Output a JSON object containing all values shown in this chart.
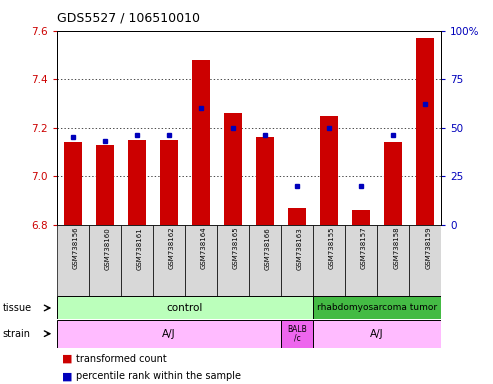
{
  "title": "GDS5527 / 106510010",
  "samples": [
    "GSM738156",
    "GSM738160",
    "GSM738161",
    "GSM738162",
    "GSM738164",
    "GSM738165",
    "GSM738166",
    "GSM738163",
    "GSM738155",
    "GSM738157",
    "GSM738158",
    "GSM738159"
  ],
  "transformed_count": [
    7.14,
    7.13,
    7.15,
    7.15,
    7.48,
    7.26,
    7.16,
    6.87,
    7.25,
    6.86,
    7.14,
    7.57
  ],
  "percentile_rank": [
    45,
    43,
    46,
    46,
    60,
    50,
    46,
    20,
    50,
    20,
    46,
    62
  ],
  "ymin": 6.8,
  "ymax": 7.6,
  "yticks": [
    6.8,
    7.0,
    7.2,
    7.4,
    7.6
  ],
  "right_yticks": [
    0,
    25,
    50,
    75,
    100
  ],
  "bar_color": "#cc0000",
  "dot_color": "#0000bb",
  "tissue_control_color": "#bbffbb",
  "tissue_tumor_color": "#44bb44",
  "strain_aj_color": "#ffbbff",
  "strain_balb_color": "#ee66ee",
  "tissue_labels": [
    "control",
    "rhabdomyosarcoma tumor"
  ],
  "strain_labels_aj1": "A/J",
  "strain_labels_balb": "BALB\n/c",
  "strain_labels_aj2": "A/J",
  "bg_color": "#d8d8d8",
  "grid_color": "#000000",
  "left_tick_color": "#cc0000",
  "right_tick_color": "#0000bb",
  "ctrl_samples": 8,
  "tumor_samples": 4,
  "aj1_samples": 7,
  "balb_samples": 1,
  "aj2_samples": 4
}
